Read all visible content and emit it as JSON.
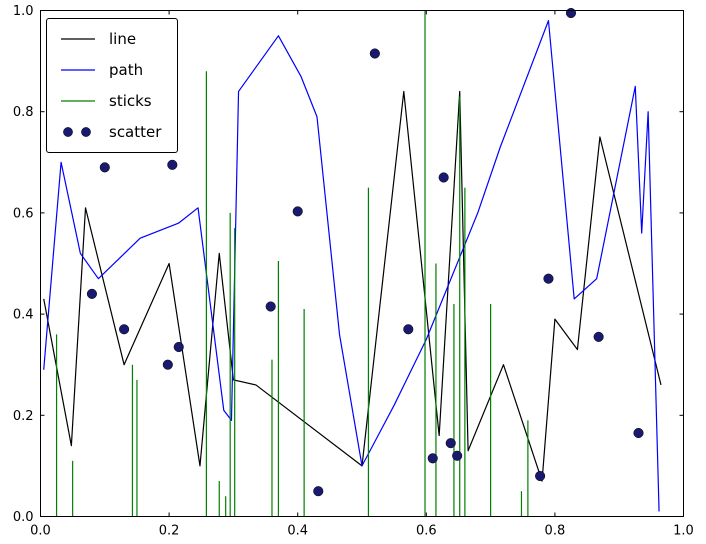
{
  "chart_data": {
    "type": "line",
    "title": "",
    "xlabel": "",
    "ylabel": "",
    "xlim": [
      0.0,
      1.0
    ],
    "ylim": [
      0.0,
      1.0
    ],
    "grid": false,
    "xticks": [
      "0.0",
      "0.2",
      "0.4",
      "0.6",
      "0.8",
      "1.0"
    ],
    "yticks": [
      "0.0",
      "0.2",
      "0.4",
      "0.6",
      "0.8",
      "1.0"
    ],
    "legend": {
      "position": "upper-left",
      "entries": [
        {
          "label": "line",
          "type": "line",
          "color": "#000000"
        },
        {
          "label": "path",
          "type": "line",
          "color": "#0000ff"
        },
        {
          "label": "sticks",
          "type": "line",
          "color": "#008000"
        },
        {
          "label": "scatter",
          "type": "marker",
          "color": "#191970"
        }
      ]
    },
    "series": [
      {
        "name": "line",
        "type": "line",
        "color": "#000000",
        "points": [
          [
            0.005,
            0.43
          ],
          [
            0.048,
            0.14
          ],
          [
            0.07,
            0.61
          ],
          [
            0.13,
            0.3
          ],
          [
            0.2,
            0.5
          ],
          [
            0.248,
            0.1
          ],
          [
            0.278,
            0.52
          ],
          [
            0.3,
            0.27
          ],
          [
            0.335,
            0.26
          ],
          [
            0.5,
            0.1
          ],
          [
            0.565,
            0.84
          ],
          [
            0.62,
            0.16
          ],
          [
            0.652,
            0.84
          ],
          [
            0.665,
            0.13
          ],
          [
            0.72,
            0.3
          ],
          [
            0.78,
            0.07
          ],
          [
            0.8,
            0.39
          ],
          [
            0.835,
            0.33
          ],
          [
            0.87,
            0.75
          ],
          [
            0.965,
            0.26
          ]
        ]
      },
      {
        "name": "path",
        "type": "line",
        "color": "#0000ff",
        "points": [
          [
            0.005,
            0.29
          ],
          [
            0.032,
            0.7
          ],
          [
            0.062,
            0.52
          ],
          [
            0.09,
            0.47
          ],
          [
            0.155,
            0.55
          ],
          [
            0.215,
            0.58
          ],
          [
            0.245,
            0.61
          ],
          [
            0.285,
            0.21
          ],
          [
            0.297,
            0.19
          ],
          [
            0.308,
            0.84
          ],
          [
            0.37,
            0.95
          ],
          [
            0.405,
            0.87
          ],
          [
            0.43,
            0.79
          ],
          [
            0.465,
            0.36
          ],
          [
            0.5,
            0.1
          ],
          [
            0.55,
            0.22
          ],
          [
            0.6,
            0.35
          ],
          [
            0.68,
            0.6
          ],
          [
            0.715,
            0.73
          ],
          [
            0.79,
            0.98
          ],
          [
            0.83,
            0.43
          ],
          [
            0.865,
            0.47
          ],
          [
            0.925,
            0.85
          ],
          [
            0.935,
            0.56
          ],
          [
            0.945,
            0.8
          ],
          [
            0.962,
            0.01
          ]
        ]
      },
      {
        "name": "sticks",
        "type": "sticks",
        "color": "#008000",
        "points": [
          [
            0.025,
            0.36
          ],
          [
            0.05,
            0.11
          ],
          [
            0.143,
            0.3
          ],
          [
            0.15,
            0.27
          ],
          [
            0.258,
            0.88
          ],
          [
            0.278,
            0.07
          ],
          [
            0.288,
            0.04
          ],
          [
            0.295,
            0.6
          ],
          [
            0.302,
            0.57
          ],
          [
            0.36,
            0.31
          ],
          [
            0.37,
            0.505
          ],
          [
            0.41,
            0.41
          ],
          [
            0.51,
            0.65
          ],
          [
            0.598,
            1.0
          ],
          [
            0.615,
            0.5
          ],
          [
            0.643,
            0.42
          ],
          [
            0.652,
            0.83
          ],
          [
            0.66,
            0.65
          ],
          [
            0.7,
            0.42
          ],
          [
            0.748,
            0.05
          ],
          [
            0.758,
            0.19
          ]
        ]
      },
      {
        "name": "scatter",
        "type": "scatter",
        "color": "#191970",
        "points": [
          [
            0.08,
            0.44
          ],
          [
            0.1,
            0.69
          ],
          [
            0.13,
            0.37
          ],
          [
            0.198,
            0.3
          ],
          [
            0.205,
            0.695
          ],
          [
            0.215,
            0.335
          ],
          [
            0.358,
            0.415
          ],
          [
            0.4,
            0.603
          ],
          [
            0.432,
            0.05
          ],
          [
            0.52,
            0.915
          ],
          [
            0.572,
            0.37
          ],
          [
            0.61,
            0.115
          ],
          [
            0.627,
            0.67
          ],
          [
            0.638,
            0.145
          ],
          [
            0.648,
            0.12
          ],
          [
            0.777,
            0.08
          ],
          [
            0.79,
            0.47
          ],
          [
            0.825,
            0.995
          ],
          [
            0.868,
            0.355
          ],
          [
            0.93,
            0.165
          ]
        ]
      }
    ]
  }
}
